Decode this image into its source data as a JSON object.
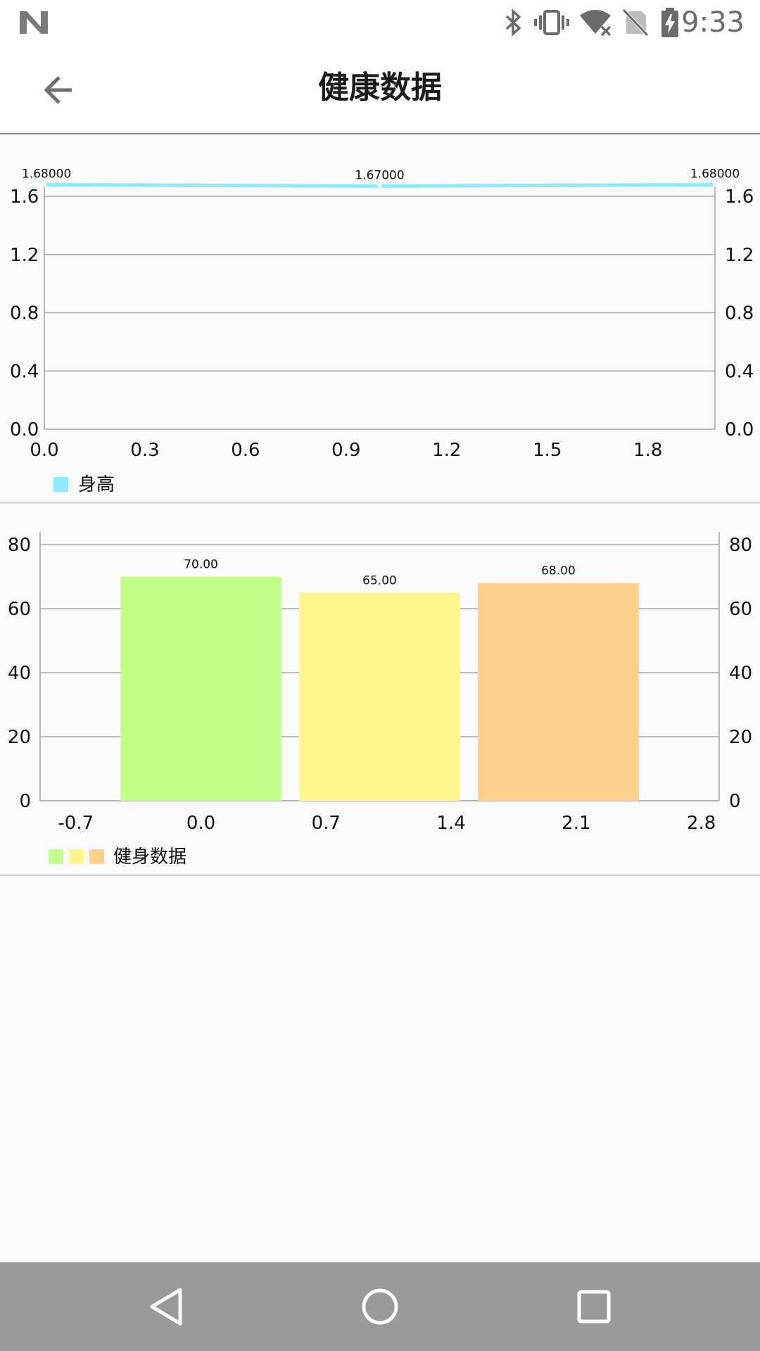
{
  "status_bar": {
    "time": "9:33",
    "icons": [
      "n-logo-icon",
      "bluetooth-icon",
      "vibrate-icon",
      "wifi-off-icon",
      "no-sim-icon",
      "battery-charging-icon"
    ]
  },
  "app_bar": {
    "title": "健康数据",
    "back_icon": "arrow-back-icon"
  },
  "chart_data": [
    {
      "type": "line",
      "legend": [
        "身高"
      ],
      "legend_position": "bottom-left",
      "series": [
        {
          "name": "身高",
          "color": "#8ee8ff",
          "x": [
            0,
            1,
            2
          ],
          "values": [
            1.68,
            1.67,
            1.68
          ],
          "value_labels": [
            "1.68000",
            "1.67000",
            "1.68000"
          ]
        }
      ],
      "xlim": [
        0,
        2
      ],
      "x_ticks": [
        "0.0",
        "0.3",
        "0.6",
        "0.9",
        "1.2",
        "1.5",
        "1.8"
      ],
      "x_tick_values": [
        0,
        0.3,
        0.6,
        0.9,
        1.2,
        1.5,
        1.8
      ],
      "ylim": [
        0,
        1.6
      ],
      "y_ticks": [
        "0.0",
        "0.4",
        "0.8",
        "1.2",
        "1.6"
      ],
      "y_tick_values": [
        0,
        0.4,
        0.8,
        1.2,
        1.6
      ],
      "grid": true,
      "dual_y_axis": true
    },
    {
      "type": "bar",
      "legend": [
        "健身数据"
      ],
      "legend_colors": [
        "#c1fe87",
        "#fff68d",
        "#ffcf8c"
      ],
      "legend_position": "bottom-left",
      "series": [
        {
          "name": "健身数据",
          "x": [
            0,
            1,
            2
          ],
          "values": [
            70,
            65,
            68
          ],
          "value_labels": [
            "70.00",
            "65.00",
            "68.00"
          ],
          "colors": [
            "#c1fe87",
            "#fff68d",
            "#ffcf8c"
          ]
        }
      ],
      "xlim": [
        -0.9,
        2.9
      ],
      "x_ticks": [
        "-0.7",
        "0.0",
        "0.7",
        "1.4",
        "2.1",
        "2.8"
      ],
      "x_tick_values": [
        -0.7,
        0,
        0.7,
        1.4,
        2.1,
        2.8
      ],
      "ylim": [
        0,
        80
      ],
      "y_ticks": [
        "0",
        "20",
        "40",
        "60",
        "80"
      ],
      "y_tick_values": [
        0,
        20,
        40,
        60,
        80
      ],
      "grid": true,
      "dual_y_axis": true
    }
  ],
  "nav_bar": {
    "back_icon": "nav-back-icon",
    "home_icon": "nav-home-icon",
    "recents_icon": "nav-recents-icon"
  }
}
